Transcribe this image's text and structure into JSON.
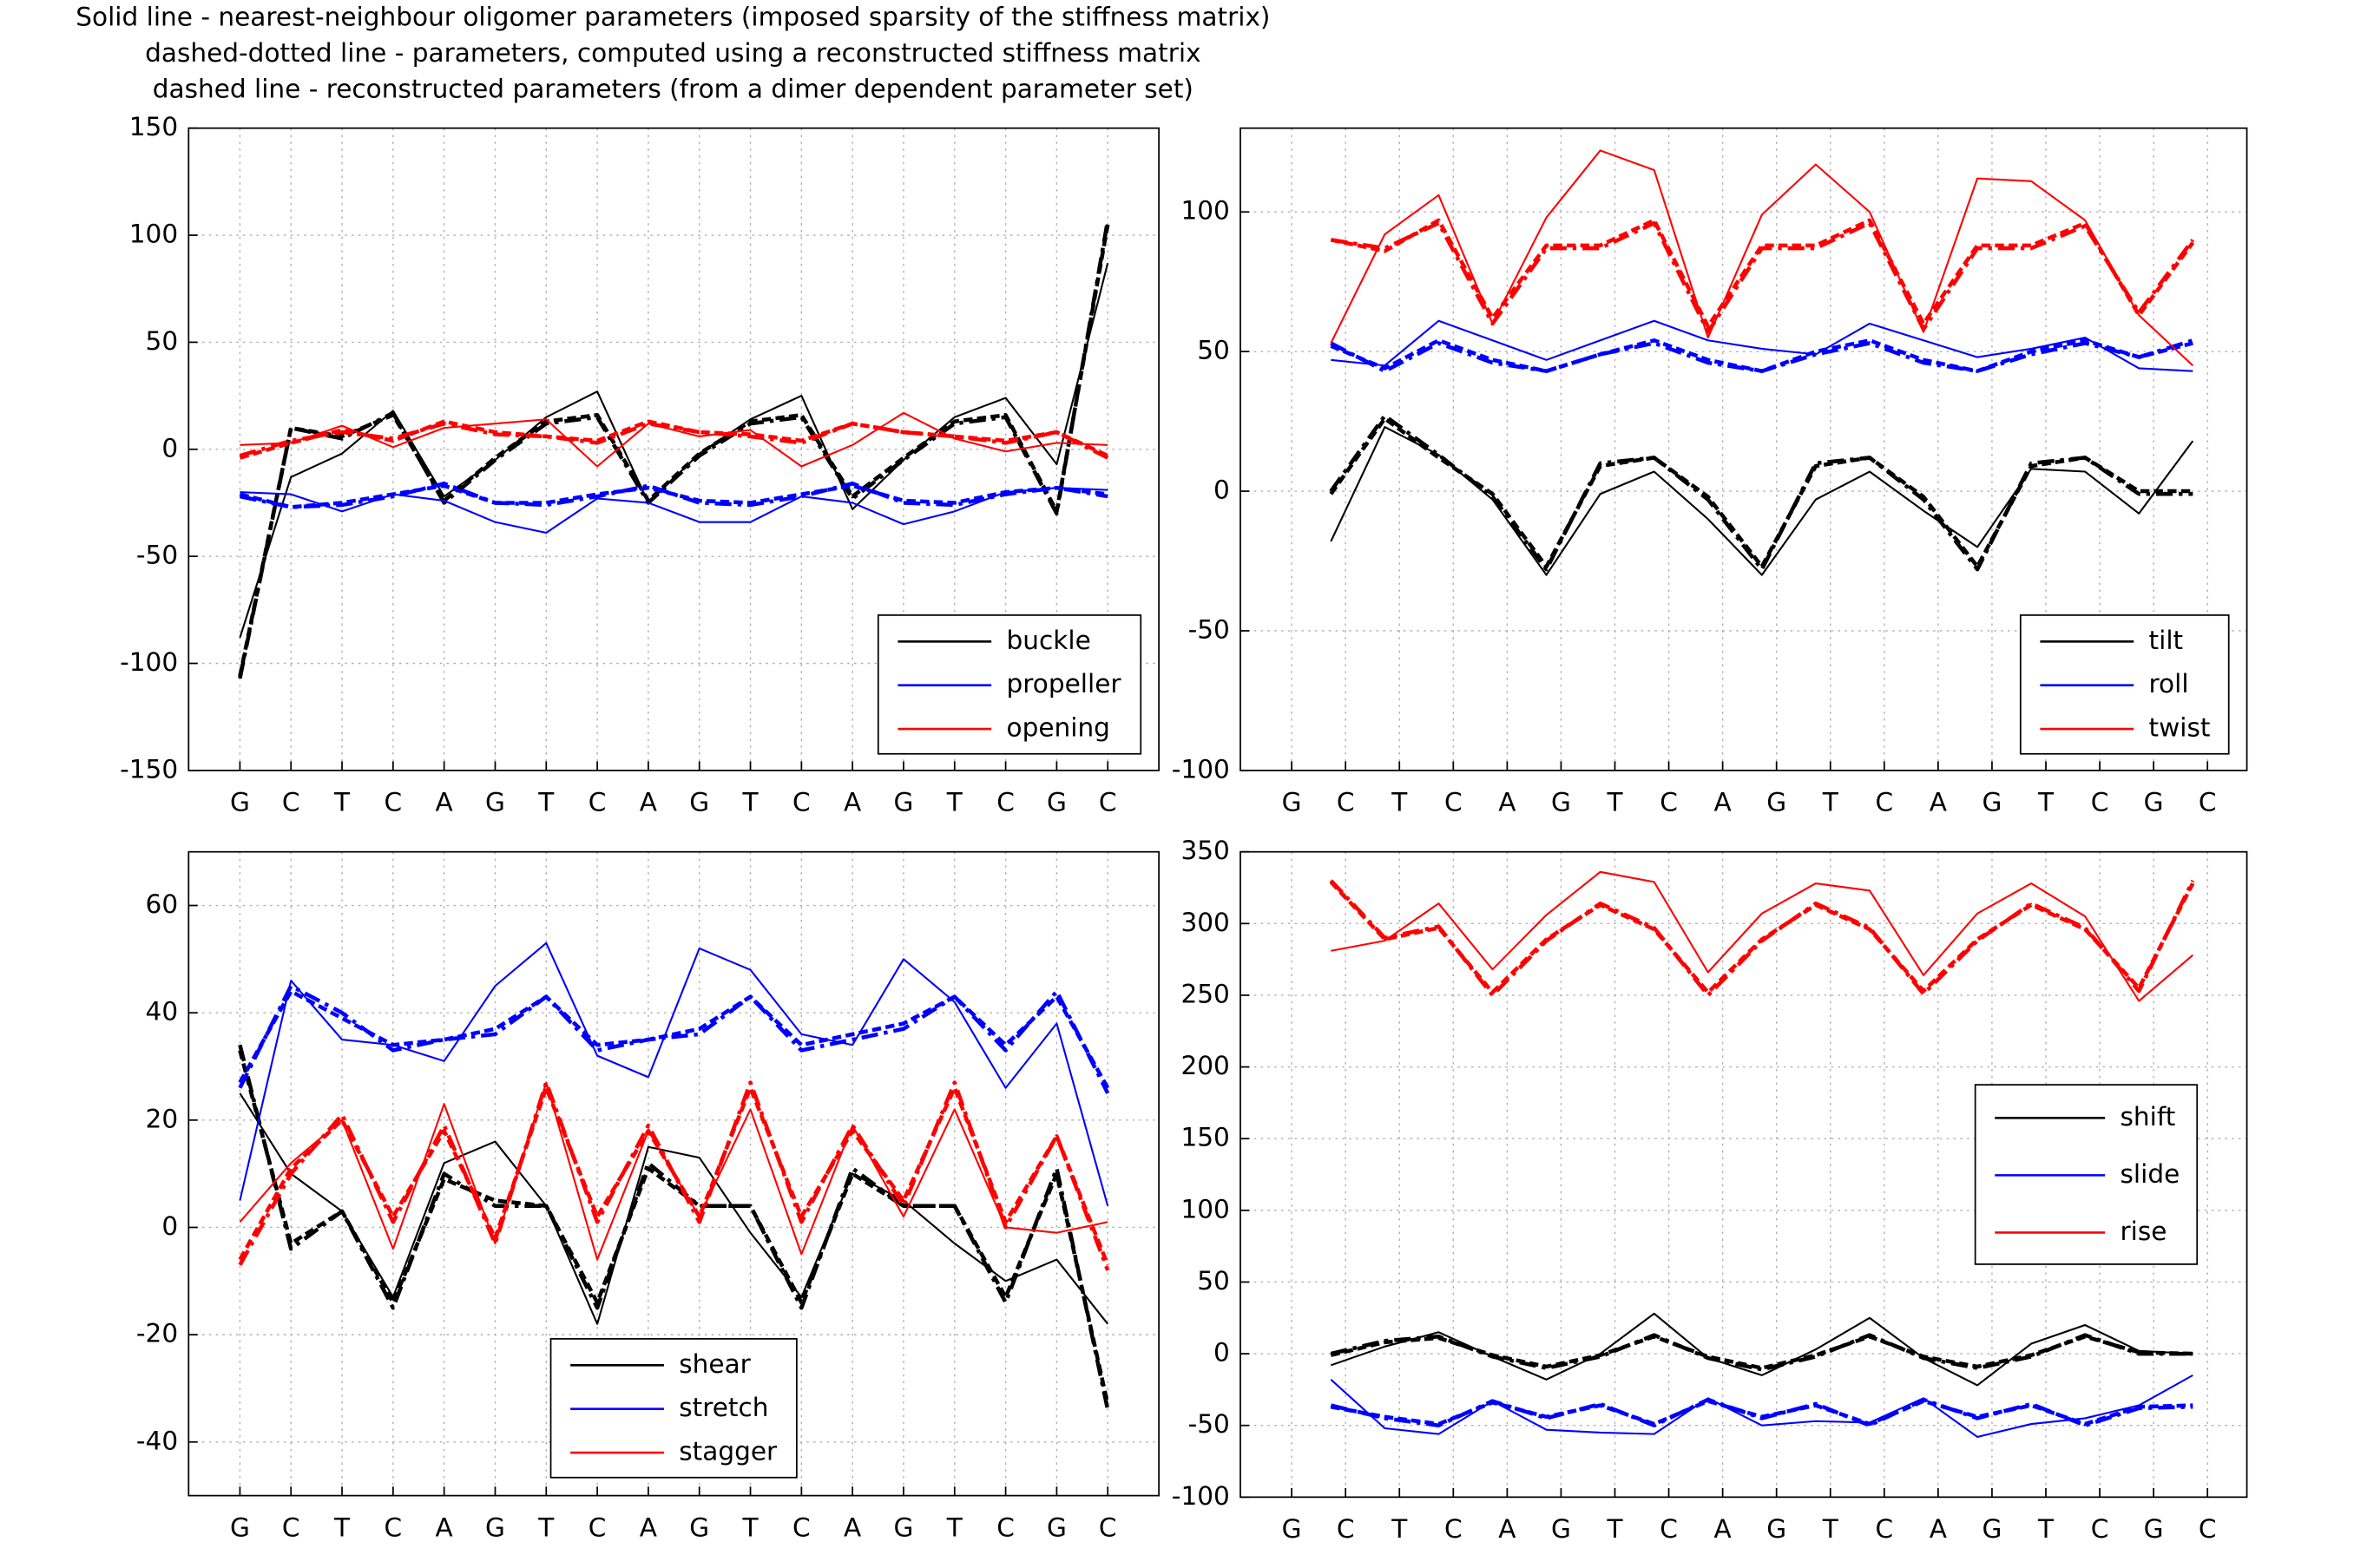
{
  "title": [
    "Solid line - nearest-neighbour oligomer parameters (imposed sparsity of the stiffness matrix)",
    "dashed-dotted line - parameters, computed using a reconstructed stiffness matrix",
    "dashed line - reconstructed parameters (from a dimer dependent parameter set)"
  ],
  "chart_data": [
    {
      "type": "line",
      "categories": [
        "G",
        "C",
        "T",
        "C",
        "A",
        "G",
        "T",
        "C",
        "A",
        "G",
        "T",
        "C",
        "A",
        "G",
        "T",
        "C",
        "G",
        "C"
      ],
      "ylim": [
        -150,
        150
      ],
      "yticks": [
        -150,
        -100,
        -50,
        0,
        50,
        100,
        150
      ],
      "grid": true,
      "legend": "lower right",
      "series": [
        {
          "name": "buckle",
          "color": "#000000",
          "values": [
            -88,
            -13,
            -2,
            18,
            -22,
            -5,
            15,
            27,
            -25,
            -2,
            14,
            25,
            -28,
            -5,
            15,
            24,
            -7,
            87
          ],
          "dashdot_values": [
            -107,
            10,
            5,
            17,
            -25,
            -5,
            12,
            15,
            -25,
            -3,
            12,
            15,
            -23,
            -5,
            12,
            15,
            -30,
            107
          ],
          "dashed_values": [
            -106,
            10,
            6,
            16,
            -24,
            -4,
            13,
            16,
            -24,
            -2,
            13,
            16,
            -22,
            -4,
            13,
            16,
            -29,
            105
          ]
        },
        {
          "name": "propeller",
          "color": "#0000ff",
          "values": [
            -20,
            -21,
            -29,
            -21,
            -24,
            -34,
            -39,
            -23,
            -25,
            -34,
            -34,
            -22,
            -25,
            -35,
            -29,
            -20,
            -18,
            -19
          ],
          "dashdot_values": [
            -22,
            -27,
            -26,
            -22,
            -16,
            -25,
            -26,
            -22,
            -17,
            -25,
            -26,
            -22,
            -16,
            -25,
            -26,
            -21,
            -18,
            -22
          ],
          "dashed_values": [
            -21,
            -27,
            -25,
            -21,
            -17,
            -25,
            -25,
            -21,
            -18,
            -24,
            -25,
            -21,
            -17,
            -24,
            -25,
            -20,
            -18,
            -21
          ]
        },
        {
          "name": "opening",
          "color": "#ff0000",
          "values": [
            2,
            3,
            11,
            1,
            10,
            12,
            14,
            -8,
            12,
            6,
            9,
            -8,
            2,
            17,
            5,
            -1,
            3,
            2
          ],
          "dashdot_values": [
            -3,
            4,
            8,
            5,
            12,
            7,
            6,
            3,
            12,
            8,
            6,
            3,
            12,
            8,
            6,
            3,
            8,
            -4
          ],
          "dashed_values": [
            -4,
            3,
            9,
            4,
            13,
            8,
            6,
            4,
            13,
            8,
            7,
            4,
            12,
            8,
            6,
            4,
            8,
            -3
          ]
        }
      ]
    },
    {
      "type": "line",
      "xticklabels": [
        "G",
        "C",
        "T",
        "C",
        "A",
        "G",
        "T",
        "C",
        "A",
        "G",
        "T",
        "C",
        "A",
        "G",
        "T",
        "C",
        "G",
        "C"
      ],
      "ylim": [
        -100,
        130
      ],
      "yticks": [
        -100,
        -50,
        0,
        50,
        100
      ],
      "grid": true,
      "legend": "lower right",
      "series": [
        {
          "name": "tilt",
          "color": "#000000",
          "values": [
            -18,
            23,
            13,
            -3,
            -30,
            -1,
            7,
            -10,
            -30,
            -3,
            7,
            -7,
            -20,
            8,
            7,
            -8,
            18
          ],
          "dashdot_values": [
            0,
            27,
            13,
            -2,
            -28,
            10,
            12,
            -3,
            -28,
            10,
            12,
            -3,
            -28,
            10,
            12,
            -1,
            -1
          ],
          "dashed_values": [
            -1,
            26,
            12,
            -1,
            -27,
            9,
            12,
            -2,
            -27,
            9,
            12,
            -2,
            -27,
            9,
            12,
            0,
            0
          ]
        },
        {
          "name": "roll",
          "color": "#0000ff",
          "values": [
            47,
            45,
            61,
            54,
            47,
            54,
            61,
            54,
            51,
            49,
            60,
            54,
            48,
            51,
            55,
            44,
            43
          ],
          "dashdot_values": [
            53,
            43,
            53,
            46,
            43,
            49,
            53,
            46,
            43,
            49,
            53,
            46,
            43,
            49,
            53,
            48,
            54
          ],
          "dashed_values": [
            52,
            44,
            54,
            47,
            43,
            49,
            54,
            47,
            43,
            50,
            54,
            47,
            43,
            50,
            54,
            48,
            53
          ]
        },
        {
          "name": "twist",
          "color": "#ff0000",
          "values": [
            53,
            92,
            106,
            60,
            98,
            122,
            115,
            55,
            99,
            117,
            100,
            57,
            112,
            111,
            97,
            63,
            45
          ],
          "dashdot_values": [
            90,
            87,
            96,
            60,
            87,
            87,
            96,
            57,
            87,
            87,
            96,
            58,
            87,
            87,
            95,
            64,
            90
          ],
          "dashed_values": [
            90,
            86,
            97,
            62,
            88,
            88,
            97,
            59,
            88,
            88,
            97,
            60,
            88,
            88,
            96,
            63,
            89
          ]
        }
      ]
    },
    {
      "type": "line",
      "categories": [
        "G",
        "C",
        "T",
        "C",
        "A",
        "G",
        "T",
        "C",
        "A",
        "G",
        "T",
        "C",
        "A",
        "G",
        "T",
        "C",
        "G",
        "C"
      ],
      "ylim": [
        -50,
        70
      ],
      "yticks": [
        -40,
        -20,
        0,
        20,
        40,
        60
      ],
      "grid": true,
      "legend": "lower center",
      "series": [
        {
          "name": "shear",
          "color": "#000000",
          "values": [
            25,
            10,
            3,
            -13,
            12,
            16,
            4,
            -18,
            15,
            13,
            -1,
            -13,
            10,
            5,
            -3,
            -10,
            -6,
            -18
          ],
          "dashdot_values": [
            34,
            -4,
            3,
            -15,
            10,
            4,
            4,
            -15,
            12,
            4,
            4,
            -15,
            11,
            4,
            4,
            -14,
            11,
            -34
          ],
          "dashed_values": [
            33,
            -3,
            3,
            -14,
            9,
            5,
            4,
            -14,
            11,
            4,
            4,
            -14,
            10,
            4,
            4,
            -13,
            10,
            -33
          ]
        },
        {
          "name": "stretch",
          "color": "#0000ff",
          "values": [
            5,
            46,
            35,
            34,
            31,
            45,
            53,
            32,
            28,
            52,
            48,
            36,
            34,
            50,
            42,
            26,
            38,
            4
          ],
          "dashdot_values": [
            26,
            45,
            40,
            33,
            35,
            36,
            43,
            33,
            35,
            36,
            43,
            33,
            35,
            37,
            43,
            33,
            44,
            25
          ],
          "dashed_values": [
            27,
            44,
            39,
            34,
            35,
            37,
            43,
            34,
            35,
            37,
            43,
            34,
            36,
            38,
            43,
            34,
            43,
            26
          ]
        },
        {
          "name": "stagger",
          "color": "#ff0000",
          "values": [
            1,
            12,
            20,
            -4,
            23,
            -3,
            27,
            -6,
            18,
            2,
            22,
            -5,
            19,
            2,
            22,
            0,
            -1,
            1
          ],
          "dashdot_values": [
            -7,
            10,
            21,
            1,
            19,
            -3,
            27,
            1,
            19,
            1,
            27,
            1,
            19,
            4,
            27,
            0,
            17,
            -8
          ],
          "dashed_values": [
            -6,
            11,
            20,
            2,
            18,
            -2,
            26,
            2,
            18,
            2,
            26,
            2,
            18,
            5,
            26,
            1,
            17,
            -7
          ]
        }
      ]
    },
    {
      "type": "line",
      "xticklabels": [
        "G",
        "C",
        "T",
        "C",
        "A",
        "G",
        "T",
        "C",
        "A",
        "G",
        "T",
        "C",
        "A",
        "G",
        "T",
        "C",
        "G",
        "C"
      ],
      "ylim": [
        -100,
        350
      ],
      "yticks": [
        -100,
        -50,
        0,
        50,
        100,
        150,
        200,
        250,
        300,
        350
      ],
      "grid": true,
      "legend": "center right",
      "series": [
        {
          "name": "shift",
          "color": "#000000",
          "values": [
            -8,
            5,
            15,
            -2,
            -18,
            0,
            28,
            -3,
            -15,
            3,
            25,
            -3,
            -22,
            7,
            20,
            2,
            0
          ],
          "dashdot_values": [
            0,
            9,
            12,
            -2,
            -10,
            -2,
            13,
            -3,
            -11,
            -2,
            13,
            -3,
            -10,
            -2,
            13,
            0,
            0
          ],
          "dashed_values": [
            -1,
            8,
            11,
            -1,
            -9,
            -1,
            12,
            -2,
            -10,
            -1,
            12,
            -2,
            -9,
            -1,
            12,
            1,
            0
          ]
        },
        {
          "name": "slide",
          "color": "#0000ff",
          "values": [
            -18,
            -52,
            -56,
            -33,
            -53,
            -55,
            -56,
            -31,
            -50,
            -47,
            -48,
            -31,
            -58,
            -49,
            -45,
            -36,
            -15
          ],
          "dashdot_values": [
            -36,
            -45,
            -50,
            -33,
            -45,
            -35,
            -50,
            -32,
            -45,
            -35,
            -50,
            -32,
            -45,
            -35,
            -50,
            -38,
            -37
          ],
          "dashed_values": [
            -37,
            -44,
            -49,
            -34,
            -44,
            -36,
            -49,
            -33,
            -44,
            -36,
            -49,
            -33,
            -44,
            -36,
            -49,
            -37,
            -36
          ]
        },
        {
          "name": "rise",
          "color": "#ff0000",
          "values": [
            281,
            288,
            314,
            268,
            306,
            336,
            329,
            266,
            307,
            328,
            323,
            264,
            307,
            328,
            305,
            246,
            278
          ],
          "dashdot_values": [
            330,
            290,
            298,
            250,
            288,
            314,
            297,
            250,
            288,
            314,
            297,
            251,
            288,
            314,
            297,
            253,
            330
          ],
          "dashed_values": [
            329,
            289,
            297,
            252,
            289,
            313,
            296,
            252,
            289,
            313,
            296,
            253,
            289,
            313,
            296,
            255,
            328
          ]
        }
      ]
    }
  ]
}
